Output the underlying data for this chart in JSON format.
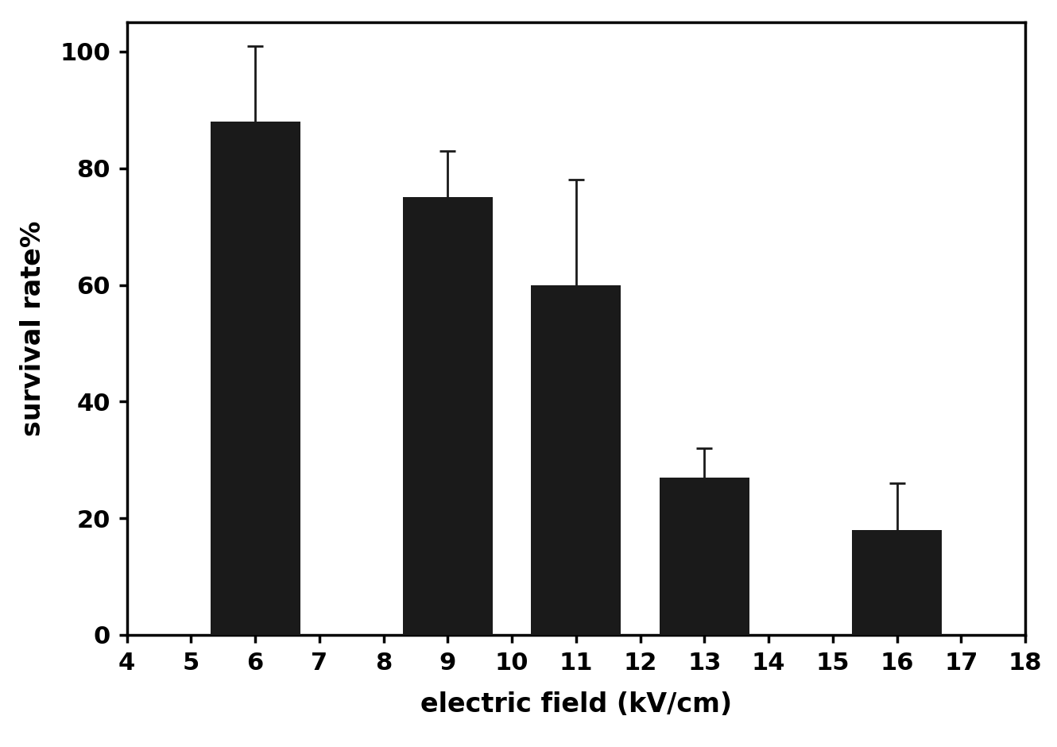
{
  "bar_positions": [
    6,
    9,
    11,
    13,
    16
  ],
  "bar_heights": [
    88,
    75,
    60,
    27,
    18
  ],
  "bar_errors": [
    13,
    8,
    18,
    5,
    8
  ],
  "bar_color": "#1a1a1a",
  "bar_width": 1.4,
  "xlabel": "electric field (kV/cm)",
  "ylabel": "survival rate%",
  "xlim": [
    4,
    18
  ],
  "ylim": [
    0,
    105
  ],
  "xticks": [
    4,
    5,
    6,
    7,
    8,
    9,
    10,
    11,
    12,
    13,
    14,
    15,
    16,
    17,
    18
  ],
  "yticks": [
    0,
    20,
    40,
    60,
    80,
    100
  ],
  "xlabel_fontsize": 24,
  "ylabel_fontsize": 24,
  "tick_fontsize": 22,
  "background_color": "#ffffff",
  "error_capsize": 7,
  "error_linewidth": 2.0,
  "spine_linewidth": 2.5
}
